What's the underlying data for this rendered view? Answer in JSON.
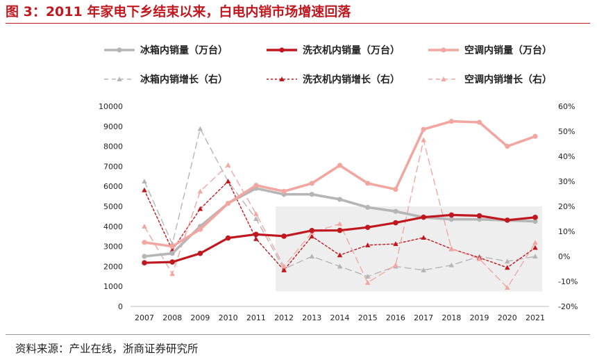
{
  "header": {
    "title": "图 3：2011 年家电下乡结束以来，白电内销市场增速回落"
  },
  "footer": {
    "source": "资料来源：产业在线，浙商证券研究所"
  },
  "colors": {
    "fridge": "#b5b5b5",
    "washer": "#c0181f",
    "ac": "#f2a6a0",
    "highlight_box": "#eeeeee",
    "title": "#c0181f"
  },
  "chart_data": {
    "type": "line",
    "title": "",
    "xlabel": "",
    "ylabel": "",
    "categories": [
      "2007",
      "2008",
      "2009",
      "2010",
      "2011",
      "2012",
      "2013",
      "2014",
      "2015",
      "2016",
      "2017",
      "2018",
      "2019",
      "2020",
      "2021"
    ],
    "left_axis": {
      "ylim": [
        0,
        10000
      ],
      "ticks": [
        "0",
        "1000",
        "2000",
        "3000",
        "4000",
        "5000",
        "6000",
        "7000",
        "8000",
        "9000",
        "10000"
      ]
    },
    "right_axis": {
      "ylim": [
        -0.2,
        0.6
      ],
      "ticks": [
        "-20%",
        "-10%",
        "0%",
        "10%",
        "20%",
        "30%",
        "40%",
        "50%",
        "60%"
      ]
    },
    "highlight_range": [
      "2012",
      "2021"
    ],
    "highlight_y_right": [
      -0.14,
      0.2
    ],
    "legend_position": "top",
    "series": [
      {
        "name": "冰箱内销量（万台）",
        "axis": "left",
        "style": "solid",
        "marker": "circle",
        "color_key": "fridge",
        "values": [
          2500,
          2650,
          4000,
          5150,
          5900,
          5600,
          5600,
          5350,
          4950,
          4750,
          4450,
          4350,
          4350,
          4300,
          4250
        ]
      },
      {
        "name": "洗衣机内销量（万台）",
        "axis": "left",
        "style": "solid",
        "marker": "circle",
        "color_key": "washer",
        "values": [
          2180,
          2220,
          2650,
          3420,
          3600,
          3510,
          3790,
          3800,
          3950,
          4180,
          4460,
          4570,
          4530,
          4310,
          4450
        ]
      },
      {
        "name": "空调内销量（万台）",
        "axis": "left",
        "style": "solid",
        "marker": "circle",
        "color_key": "ac",
        "values": [
          3200,
          3000,
          3850,
          5150,
          6050,
          5750,
          6150,
          7050,
          6150,
          5850,
          8850,
          9250,
          9200,
          8000,
          8500
        ]
      },
      {
        "name": "冰箱内销增长（右）",
        "axis": "right",
        "style": "dashed",
        "marker": "triangle",
        "color_key": "fridge",
        "values": [
          0.3,
          0.05,
          0.51,
          0.3,
          0.15,
          -0.05,
          0.0,
          -0.04,
          -0.08,
          -0.04,
          -0.055,
          -0.035,
          0.0,
          -0.02,
          0.0
        ]
      },
      {
        "name": "洗衣机内销增长（右）",
        "axis": "right",
        "style": "dashed",
        "marker": "triangle",
        "color_key": "washer",
        "values": [
          0.265,
          0.025,
          0.19,
          0.3,
          0.07,
          -0.055,
          0.08,
          0.005,
          0.045,
          0.05,
          0.075,
          0.03,
          -0.005,
          -0.045,
          0.035
        ]
      },
      {
        "name": "空调内销增长（右）",
        "axis": "right",
        "style": "dashed",
        "marker": "triangle",
        "color_key": "ac",
        "values": [
          0.12,
          -0.07,
          0.26,
          0.365,
          0.17,
          -0.04,
          0.095,
          0.13,
          -0.105,
          -0.035,
          0.465,
          0.03,
          -0.01,
          -0.125,
          0.055
        ]
      }
    ]
  }
}
